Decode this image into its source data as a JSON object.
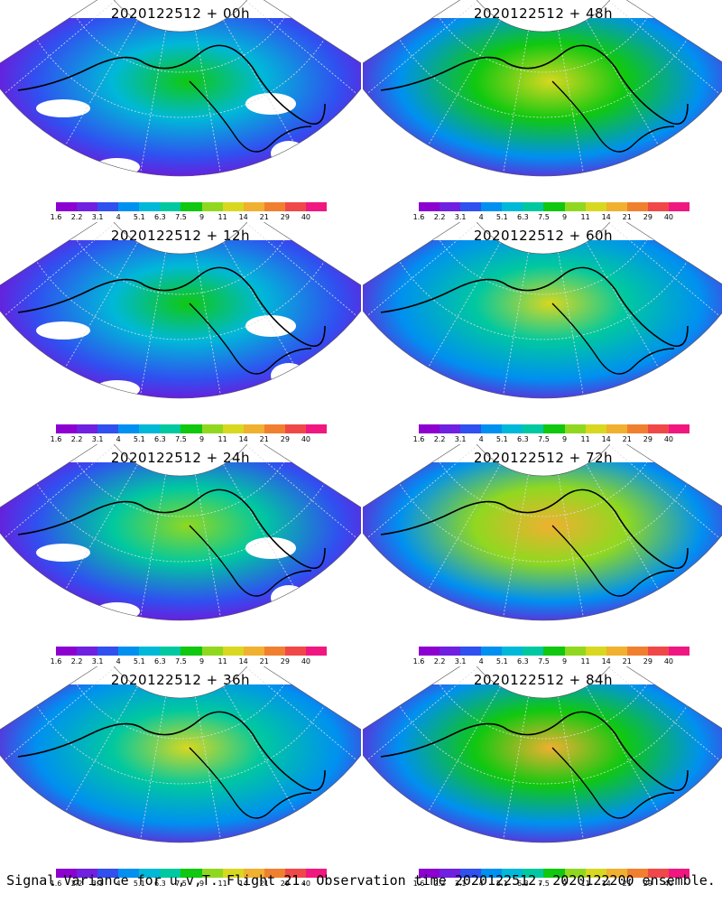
{
  "panels": [
    {
      "title": "2020122512 + 00h"
    },
    {
      "title": "2020122512 + 48h"
    },
    {
      "title": "2020122512 + 12h"
    },
    {
      "title": "2020122512 + 60h"
    },
    {
      "title": "2020122512 + 24h"
    },
    {
      "title": "2020122512 + 72h"
    },
    {
      "title": "2020122512 + 36h"
    },
    {
      "title": "2020122512 + 84h"
    }
  ],
  "colorbar": {
    "ticks": [
      "1.6",
      "2.2",
      "3.1",
      "4",
      "5.1",
      "6.3",
      "7.5",
      "9",
      "11",
      "14",
      "21",
      "29",
      "40"
    ],
    "colors": [
      "#8c00d0",
      "#7020e0",
      "#3050f0",
      "#0090f0",
      "#00b8d8",
      "#00c8a0",
      "#10c810",
      "#90d820",
      "#d8d820",
      "#f0b030",
      "#f08030",
      "#f04848",
      "#f01880"
    ]
  },
  "caption": "Signal Variance for u,v,T. Flight 21. Observation time 2020122512. 2020122200 ensemble."
}
